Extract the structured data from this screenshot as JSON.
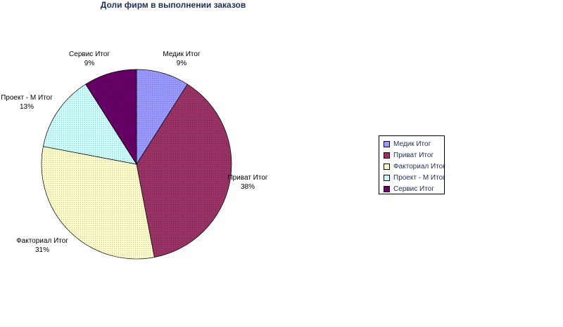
{
  "chart_data": {
    "type": "pie",
    "title": "Доли фирм в выполнении заказов",
    "slices": [
      {
        "name": "Медик Итог",
        "label": "Медик Итог",
        "value": 9,
        "pct_label": "9%",
        "color": "#9999ff"
      },
      {
        "name": "Приват Итог",
        "label": "Приват Итог",
        "value": 38,
        "pct_label": "38%",
        "color": "#993366"
      },
      {
        "name": "Факториал Итог",
        "label": "Факториал Итог",
        "value": 31,
        "pct_label": "31%",
        "color": "#ffffcc"
      },
      {
        "name": "Проект - М Итог",
        "label": "Проект - М Итог",
        "value": 13,
        "pct_label": "13%",
        "color": "#ccffff"
      },
      {
        "name": "Сервис Итог",
        "label": "Сервис Итог",
        "value": 9,
        "pct_label": "9%",
        "color": "#660066"
      }
    ],
    "legend_position": "right"
  }
}
